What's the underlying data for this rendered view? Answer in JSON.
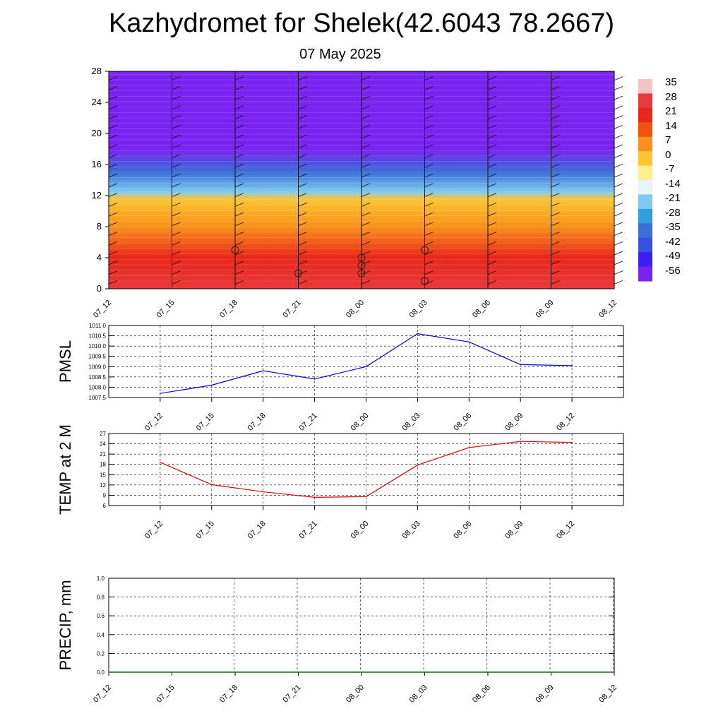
{
  "title": "Kazhydromet for Shelek(42.6043 78.2667)",
  "subtitle": "07 May 2025",
  "time_labels": [
    "07_12",
    "07_15",
    "07_18",
    "07_21",
    "08_00",
    "08_03",
    "08_06",
    "08_09",
    "08_12"
  ],
  "colors": {
    "pmsl_line": "#0000dd",
    "temp_line": "#dd0000",
    "precip_line": "#0a6b0a",
    "grid": "#000000"
  },
  "chart_data": [
    {
      "type": "heatmap",
      "name": "cross-section",
      "x": [
        "07_12",
        "07_15",
        "07_18",
        "07_21",
        "08_00",
        "08_03",
        "08_06",
        "08_09",
        "08_12"
      ],
      "ylim": [
        0,
        28
      ],
      "y_ticks": [
        0,
        4,
        8,
        12,
        16,
        20,
        24,
        28
      ],
      "colorbar_levels": [
        "35",
        "28",
        "21",
        "14",
        "7",
        "0",
        "-7",
        "-14",
        "-21",
        "-28",
        "-35",
        "-42",
        "-49",
        "-56"
      ],
      "colorbar_colors": [
        "#f7c4c4",
        "#e83a3a",
        "#e8261a",
        "#f2520e",
        "#f9911a",
        "#fcc531",
        "#fef08a",
        "#e6f4fb",
        "#7fcaf0",
        "#2f9fe0",
        "#3a6fd8",
        "#3650e0",
        "#3b1ef0",
        "#7a22f0"
      ],
      "temperature_profile": [
        {
          "height": 0,
          "value": 30
        },
        {
          "height": 4,
          "value": 26
        },
        {
          "height": 8,
          "value": 12
        },
        {
          "height": 11.5,
          "value": 1
        },
        {
          "height": 12.5,
          "value": -16
        },
        {
          "height": 15,
          "value": -30
        },
        {
          "height": 18,
          "value": -50
        },
        {
          "height": 20.5,
          "value": -56
        },
        {
          "height": 22,
          "value": -60
        },
        {
          "height": 28,
          "value": -60
        }
      ],
      "cloud_markers": [
        {
          "x": "07_18",
          "y": 5
        },
        {
          "x": "07_21",
          "y": 2
        },
        {
          "x": "08_00",
          "y": 2
        },
        {
          "x": "08_00",
          "y": 3
        },
        {
          "x": "08_00",
          "y": 4
        },
        {
          "x": "08_03",
          "y": 5
        },
        {
          "x": "08_03",
          "y": 1
        }
      ]
    },
    {
      "type": "line",
      "ylabel": "PMSL",
      "categories": [
        "07_12",
        "07_15",
        "07_18",
        "07_21",
        "08_00",
        "08_03",
        "08_06",
        "08_09",
        "08_12"
      ],
      "values": [
        1007.7,
        1008.1,
        1008.8,
        1008.4,
        1009.0,
        1010.6,
        1010.2,
        1009.1,
        1009.05
      ],
      "ylim": [
        1007.5,
        1011.0
      ],
      "y_ticks": [
        "1007.5",
        "1008.0",
        "1008.5",
        "1009.0",
        "1009.5",
        "1010.0",
        "1010.5",
        "1011.0"
      ],
      "grid": true
    },
    {
      "type": "line",
      "ylabel": "TEMP at 2 M",
      "categories": [
        "07_12",
        "07_15",
        "07_18",
        "07_21",
        "08_00",
        "08_03",
        "08_06",
        "08_09",
        "08_12"
      ],
      "values": [
        18.6,
        12.1,
        10.0,
        8.4,
        8.6,
        17.8,
        22.9,
        24.7,
        24.4
      ],
      "ylim": [
        6,
        27
      ],
      "y_ticks": [
        "6",
        "9",
        "12",
        "15",
        "18",
        "21",
        "24",
        "27"
      ],
      "grid": true
    },
    {
      "type": "line",
      "ylabel": "PRECIP, mm",
      "categories": [
        "07_12",
        "07_15",
        "07_18",
        "07_21",
        "08_00",
        "08_03",
        "08_06",
        "08_09",
        "08_12"
      ],
      "values": [
        0,
        0,
        0,
        0,
        0,
        0,
        0,
        0,
        0
      ],
      "ylim": [
        0,
        1
      ],
      "y_ticks": [
        "0.0",
        "0.2",
        "0.4",
        "0.6",
        "0.8",
        "1.0"
      ],
      "grid": true
    }
  ]
}
